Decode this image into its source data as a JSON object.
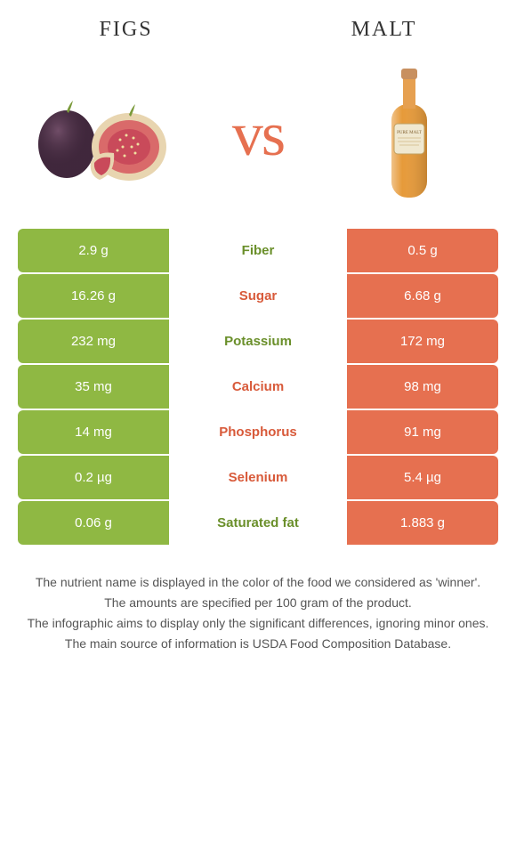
{
  "header": {
    "left": "FIGS",
    "right": "MALT"
  },
  "vs": "vs",
  "colors": {
    "left_bg": "#8fb843",
    "right_bg": "#e67050",
    "left_text": "#6a8f2a",
    "right_text": "#d85a3a"
  },
  "rows": [
    {
      "left": "2.9 g",
      "mid": "Fiber",
      "right": "0.5 g",
      "winner": "left"
    },
    {
      "left": "16.26 g",
      "mid": "Sugar",
      "right": "6.68 g",
      "winner": "right"
    },
    {
      "left": "232 mg",
      "mid": "Potassium",
      "right": "172 mg",
      "winner": "left"
    },
    {
      "left": "35 mg",
      "mid": "Calcium",
      "right": "98 mg",
      "winner": "right"
    },
    {
      "left": "14 mg",
      "mid": "Phosphorus",
      "right": "91 mg",
      "winner": "right"
    },
    {
      "left": "0.2 µg",
      "mid": "Selenium",
      "right": "5.4 µg",
      "winner": "right"
    },
    {
      "left": "0.06 g",
      "mid": "Saturated fat",
      "right": "1.883 g",
      "winner": "left"
    }
  ],
  "footer": [
    "The nutrient name is displayed in the color of the food we considered as 'winner'.",
    "The amounts are specified per 100 gram of the product.",
    "The infographic aims to display only the significant differences, ignoring minor ones.",
    "The main source of information is USDA Food Composition Database."
  ]
}
